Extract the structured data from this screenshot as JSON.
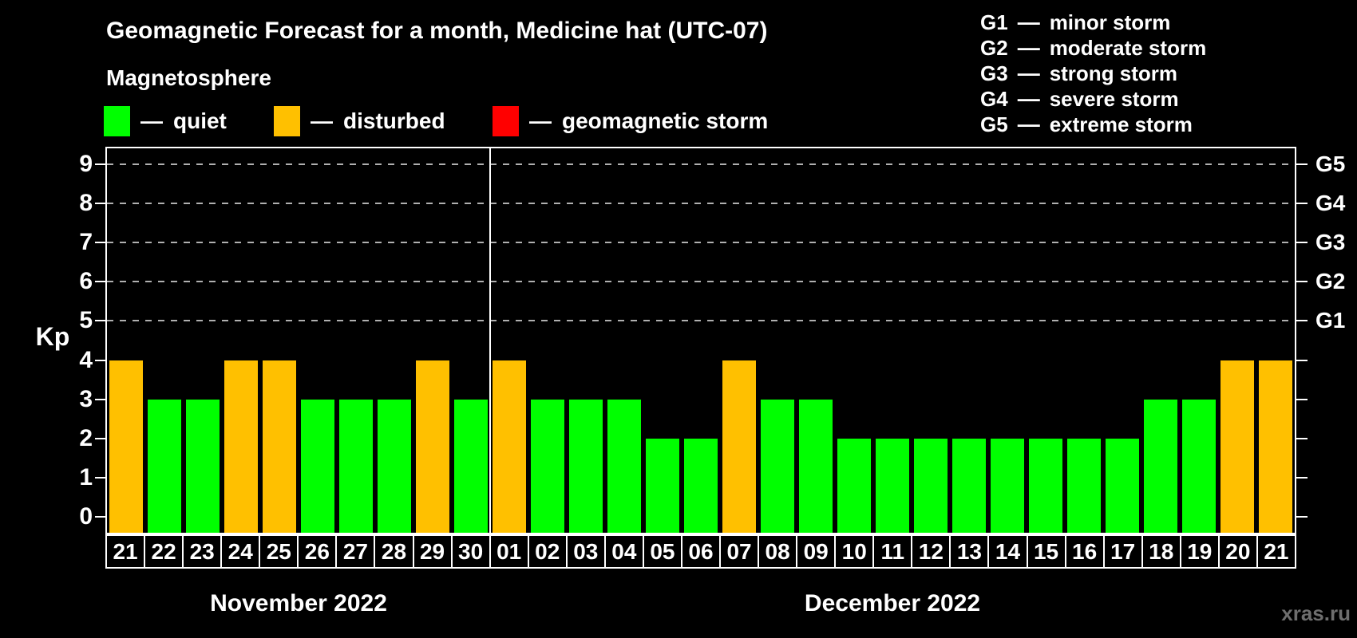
{
  "header": {
    "title": "Geomagnetic Forecast for a month, Medicine hat (UTC-07)",
    "subtitle": "Magnetosphere",
    "dash": "—",
    "legend": [
      {
        "key": "quiet",
        "label": "quiet",
        "color": "#00ff00"
      },
      {
        "key": "disturbed",
        "label": "disturbed",
        "color": "#ffc000"
      },
      {
        "key": "storm",
        "label": "geomagnetic storm",
        "color": "#ff0000"
      }
    ],
    "storm_scale": [
      {
        "code": "G1",
        "label": "minor storm"
      },
      {
        "code": "G2",
        "label": "moderate storm"
      },
      {
        "code": "G3",
        "label": "strong storm"
      },
      {
        "code": "G4",
        "label": "severe storm"
      },
      {
        "code": "G5",
        "label": "extreme storm"
      }
    ]
  },
  "chart_data": {
    "type": "bar",
    "title": "Geomagnetic Forecast for a month, Medicine hat (UTC-07)",
    "ylabel": "Kp",
    "ylim": [
      0,
      9
    ],
    "yticks": [
      0,
      1,
      2,
      3,
      4,
      5,
      6,
      7,
      8,
      9
    ],
    "grid_levels": [
      5,
      6,
      7,
      8,
      9
    ],
    "grid_style": "dashed",
    "legend_position": "top-left",
    "right_axis": [
      {
        "level": 5,
        "label": "G1"
      },
      {
        "level": 6,
        "label": "G2"
      },
      {
        "level": 7,
        "label": "G3"
      },
      {
        "level": 8,
        "label": "G4"
      },
      {
        "level": 9,
        "label": "G5"
      }
    ],
    "status_colors": {
      "quiet": "#00ff00",
      "disturbed": "#ffc000",
      "storm": "#ff0000"
    },
    "months": [
      {
        "label": "November 2022",
        "bars": [
          {
            "day": "21",
            "kp": 4,
            "status": "disturbed"
          },
          {
            "day": "22",
            "kp": 3,
            "status": "quiet"
          },
          {
            "day": "23",
            "kp": 3,
            "status": "quiet"
          },
          {
            "day": "24",
            "kp": 4,
            "status": "disturbed"
          },
          {
            "day": "25",
            "kp": 4,
            "status": "disturbed"
          },
          {
            "day": "26",
            "kp": 3,
            "status": "quiet"
          },
          {
            "day": "27",
            "kp": 3,
            "status": "quiet"
          },
          {
            "day": "28",
            "kp": 3,
            "status": "quiet"
          },
          {
            "day": "29",
            "kp": 4,
            "status": "disturbed"
          },
          {
            "day": "30",
            "kp": 3,
            "status": "quiet"
          }
        ]
      },
      {
        "label": "December 2022",
        "bars": [
          {
            "day": "01",
            "kp": 4,
            "status": "disturbed"
          },
          {
            "day": "02",
            "kp": 3,
            "status": "quiet"
          },
          {
            "day": "03",
            "kp": 3,
            "status": "quiet"
          },
          {
            "day": "04",
            "kp": 3,
            "status": "quiet"
          },
          {
            "day": "05",
            "kp": 2,
            "status": "quiet"
          },
          {
            "day": "06",
            "kp": 2,
            "status": "quiet"
          },
          {
            "day": "07",
            "kp": 4,
            "status": "disturbed"
          },
          {
            "day": "08",
            "kp": 3,
            "status": "quiet"
          },
          {
            "day": "09",
            "kp": 3,
            "status": "quiet"
          },
          {
            "day": "10",
            "kp": 2,
            "status": "quiet"
          },
          {
            "day": "11",
            "kp": 2,
            "status": "quiet"
          },
          {
            "day": "12",
            "kp": 2,
            "status": "quiet"
          },
          {
            "day": "13",
            "kp": 2,
            "status": "quiet"
          },
          {
            "day": "14",
            "kp": 2,
            "status": "quiet"
          },
          {
            "day": "15",
            "kp": 2,
            "status": "quiet"
          },
          {
            "day": "16",
            "kp": 2,
            "status": "quiet"
          },
          {
            "day": "17",
            "kp": 2,
            "status": "quiet"
          },
          {
            "day": "18",
            "kp": 3,
            "status": "quiet"
          },
          {
            "day": "19",
            "kp": 3,
            "status": "quiet"
          },
          {
            "day": "20",
            "kp": 4,
            "status": "disturbed"
          },
          {
            "day": "21",
            "kp": 4,
            "status": "disturbed"
          }
        ]
      }
    ]
  },
  "watermark": "xras.ru"
}
